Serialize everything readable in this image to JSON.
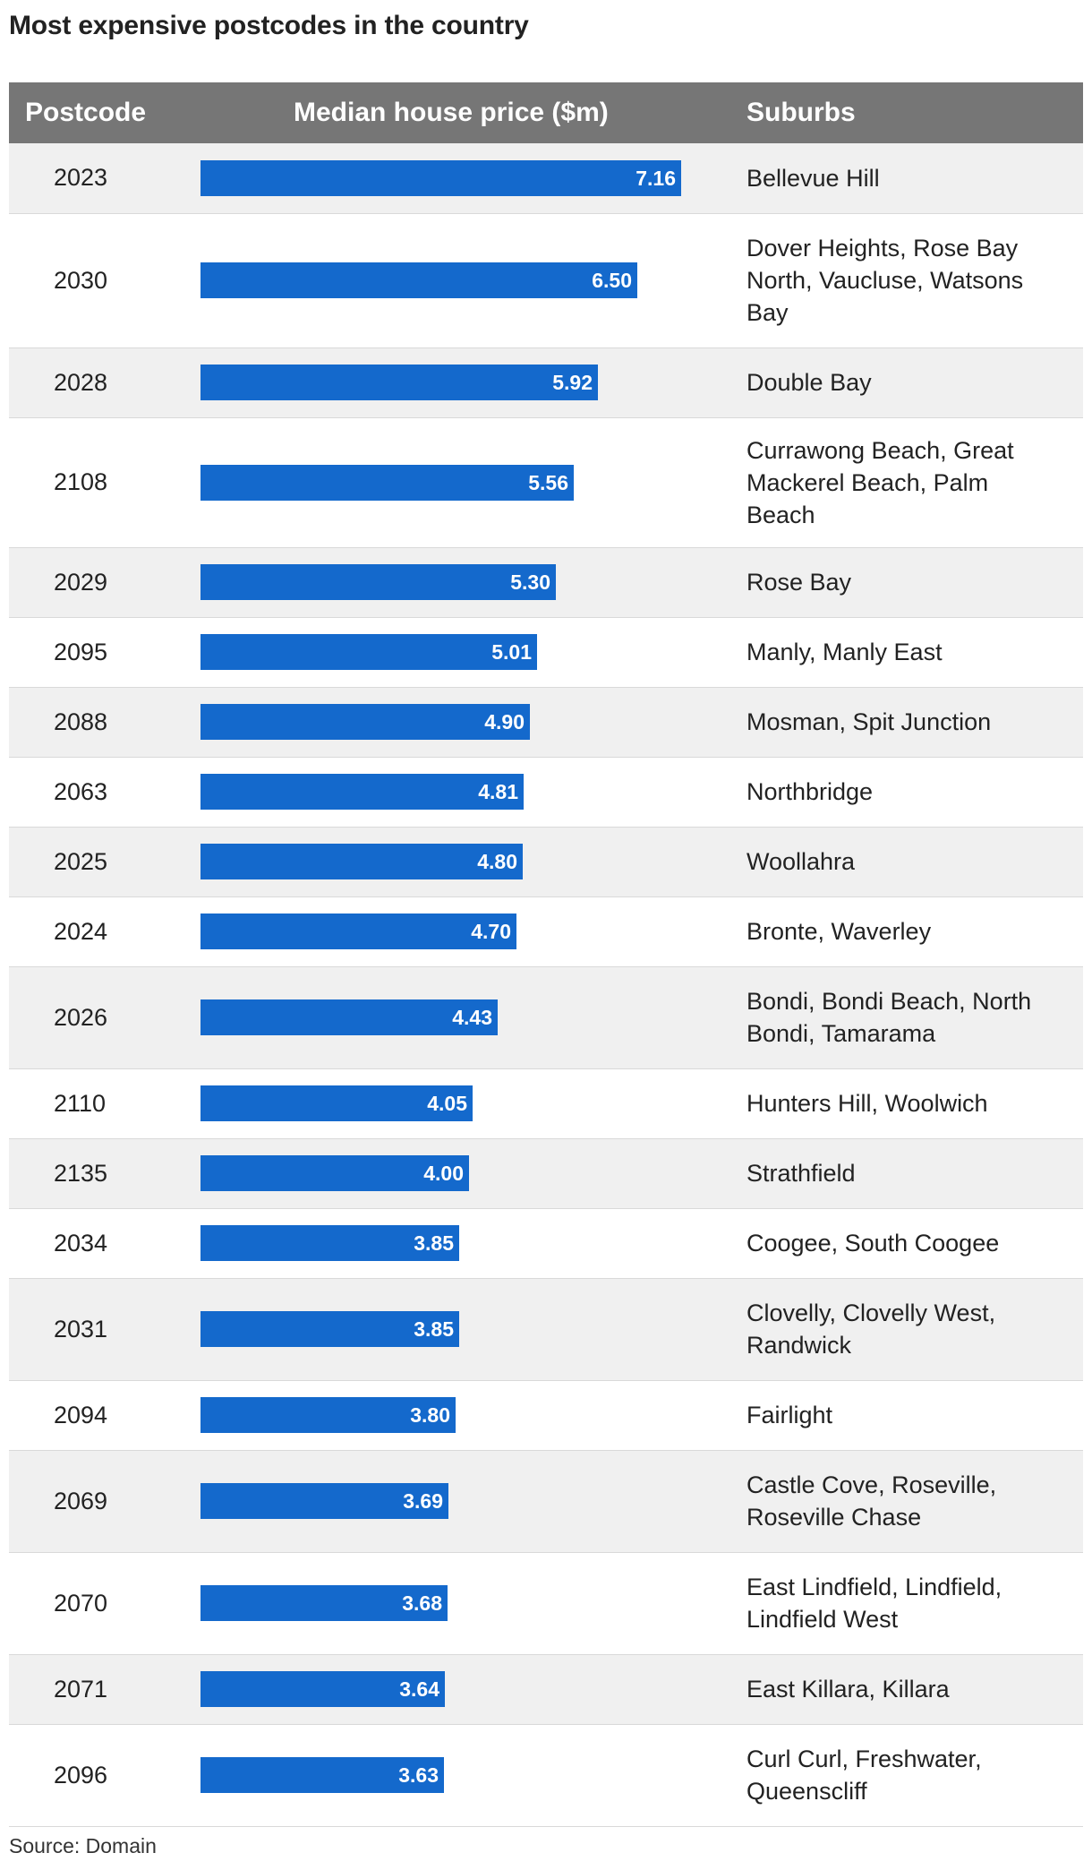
{
  "title": "Most expensive postcodes in the country",
  "source": "Source: Domain",
  "colors": {
    "bar": "#1469cc",
    "header_bg": "#767676",
    "stripe": "#f0f0f0"
  },
  "headers": {
    "postcode": "Postcode",
    "price": "Median house price ($m)",
    "suburbs": "Suburbs"
  },
  "chart_data": {
    "type": "bar",
    "title": "Most expensive postcodes in the country",
    "xlabel": "Median house price ($m)",
    "ylabel": "Postcode",
    "xlim": [
      0,
      7.16
    ],
    "categories": [
      "2023",
      "2030",
      "2028",
      "2108",
      "2029",
      "2095",
      "2088",
      "2063",
      "2025",
      "2024",
      "2026",
      "2110",
      "2135",
      "2034",
      "2031",
      "2094",
      "2069",
      "2070",
      "2071",
      "2096"
    ],
    "values": [
      7.16,
      6.5,
      5.92,
      5.56,
      5.3,
      5.01,
      4.9,
      4.81,
      4.8,
      4.7,
      4.43,
      4.05,
      4.0,
      3.85,
      3.85,
      3.8,
      3.69,
      3.68,
      3.64,
      3.63
    ],
    "value_labels": [
      "7.16",
      "6.50",
      "5.92",
      "5.56",
      "5.30",
      "5.01",
      "4.90",
      "4.81",
      "4.80",
      "4.70",
      "4.43",
      "4.05",
      "4.00",
      "3.85",
      "3.85",
      "3.80",
      "3.69",
      "3.68",
      "3.64",
      "3.63"
    ],
    "suburbs": [
      "Bellevue Hill",
      "Dover Heights, Rose Bay North, Vaucluse, Watsons Bay",
      "Double Bay",
      "Currawong Beach, Great Mackerel Beach, Palm Beach",
      "Rose Bay",
      "Manly, Manly East",
      "Mosman, Spit Junction",
      "Northbridge",
      "Woollahra",
      "Bronte, Waverley",
      "Bondi, Bondi Beach, North Bondi, Tamarama",
      "Hunters Hill, Woolwich",
      "Strathfield",
      "Coogee, South Coogee",
      "Clovelly, Clovelly West, Randwick",
      "Fairlight",
      "Castle Cove, Roseville, Roseville Chase",
      "East Lindfield, Lindfield, Lindfield West",
      "East Killara, Killara",
      "Curl Curl, Freshwater, Queenscliff"
    ]
  }
}
